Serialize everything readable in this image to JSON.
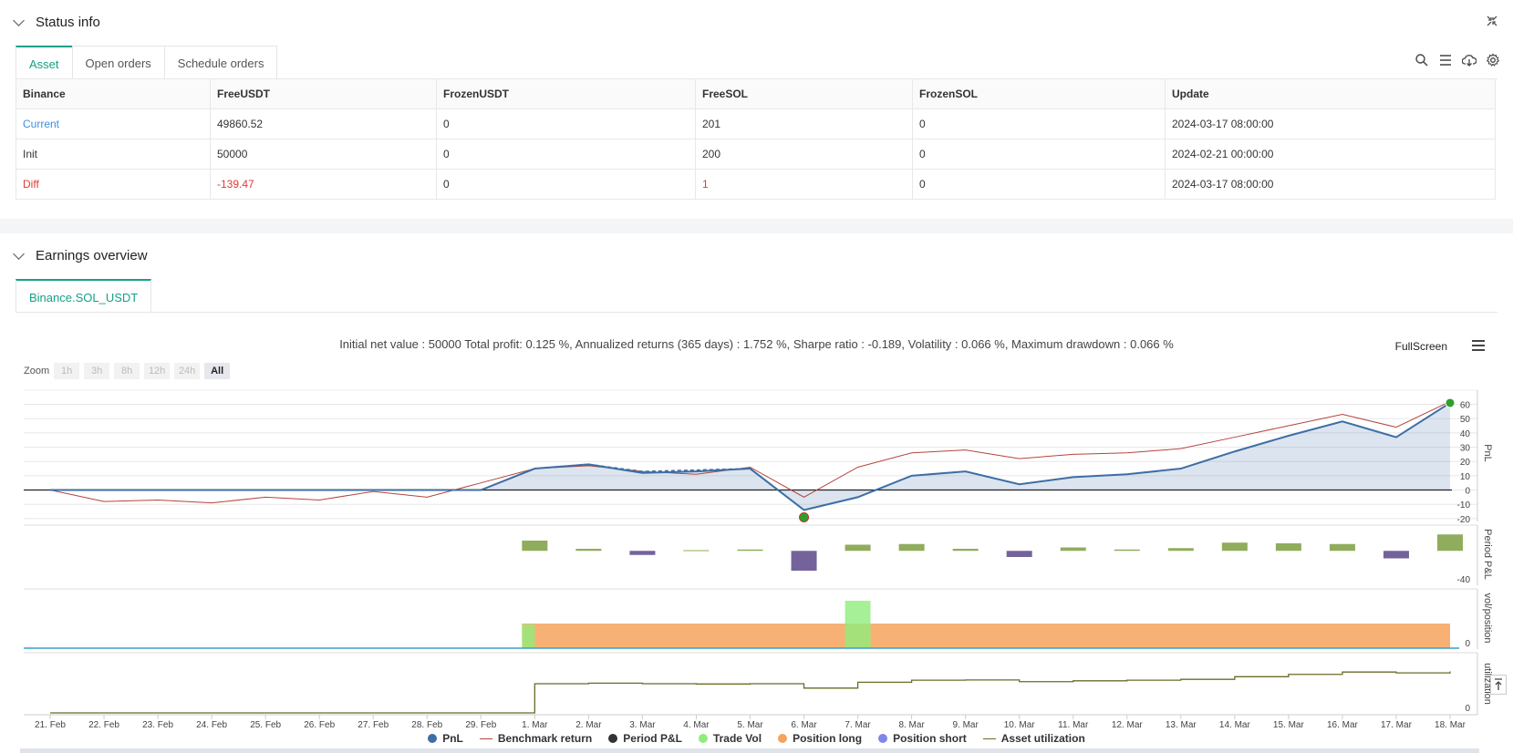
{
  "status_panel": {
    "title": "Status info",
    "tabs": [
      "Asset",
      "Open orders",
      "Schedule orders"
    ],
    "table": {
      "headers": [
        "Binance",
        "FreeUSDT",
        "FrozenUSDT",
        "FreeSOL",
        "FrozenSOL",
        "Update"
      ],
      "rows": [
        [
          "Current",
          "49860.52",
          "0",
          "201",
          "0",
          "2024-03-17 08:00:00"
        ],
        [
          "Init",
          "50000",
          "0",
          "200",
          "0",
          "2024-02-21 00:00:00"
        ],
        [
          "Diff",
          "-139.47",
          "0",
          "1",
          "0",
          "2024-03-17 08:00:00"
        ]
      ]
    },
    "icons": [
      "search-icon",
      "list-icon",
      "cloud-download-icon",
      "gear-icon",
      "collapse-icon"
    ]
  },
  "earnings_panel": {
    "title": "Earnings overview",
    "tab": "Binance.SOL_USDT",
    "summary": "Initial net value : 50000 Total profit: 0.125 %, Annualized returns (365 days) : 1.752 %, Sharpe ratio : -0.189, Volatility : 0.066 %, Maximum drawdown : 0.066 %",
    "zoom_label": "Zoom",
    "zoom_buttons": [
      "1h",
      "3h",
      "8h",
      "12h",
      "24h",
      "All"
    ],
    "zoom_selected": "All",
    "fullscreen_label": "FullScreen"
  },
  "chart_data": {
    "type": "line",
    "x": [
      "21. Feb",
      "22. Feb",
      "23. Feb",
      "24. Feb",
      "25. Feb",
      "26. Feb",
      "27. Feb",
      "28. Feb",
      "29. Feb",
      "1. Mar",
      "2. Mar",
      "3. Mar",
      "4. Mar",
      "5. Mar",
      "6. Mar",
      "7. Mar",
      "8. Mar",
      "9. Mar",
      "10. Mar",
      "11. Mar",
      "12. Mar",
      "13. Mar",
      "14. Mar",
      "15. Mar",
      "16. Mar",
      "17. Mar",
      "18. Mar"
    ],
    "panes": [
      {
        "ylabel": "PnL",
        "yticks": [
          60,
          50,
          40,
          30,
          20,
          10,
          0,
          -10,
          -20
        ],
        "ylim": [
          -22,
          68
        ],
        "series": [
          {
            "name": "PnL",
            "color": "#3d6ea5",
            "values": [
              0,
              0,
              0,
              0,
              0,
              0,
              0,
              0,
              0,
              15,
              18,
              12,
              13,
              15,
              -14,
              -5,
              10,
              13,
              4,
              9,
              11,
              15,
              27,
              38,
              48,
              37,
              61
            ]
          },
          {
            "name": "Benchmark return",
            "color": "#b5443d",
            "values": [
              0,
              -8,
              -7,
              -9,
              -5,
              -7,
              -1,
              -5,
              5,
              15,
              17,
              13,
              11,
              16,
              -5,
              16,
              26,
              28,
              22,
              25,
              26,
              29,
              37,
              45,
              53,
              44,
              62
            ]
          }
        ]
      },
      {
        "ylabel": "Period P&L",
        "yticks": [
          -40
        ],
        "ylim": [
          -45,
          35
        ],
        "series": [
          {
            "name": "Period P&L",
            "values": [
              null,
              null,
              null,
              null,
              null,
              null,
              null,
              null,
              null,
              15,
              3,
              -6,
              1,
              2,
              -29,
              9,
              10,
              3,
              -9,
              5,
              2,
              4,
              12,
              11,
              10,
              -11,
              24
            ]
          }
        ]
      },
      {
        "ylabel": "vol/position",
        "yticks": [
          0
        ],
        "series": [
          {
            "name": "Trade Vol",
            "color": "#90ed7d",
            "values": [
              0,
              0,
              0,
              0,
              0,
              0,
              0,
              0,
              0,
              1,
              0,
              0,
              0,
              0,
              0,
              2,
              0,
              0,
              0,
              0,
              0,
              0,
              0,
              0,
              0,
              0,
              0
            ]
          },
          {
            "name": "Position long",
            "color": "#f7a35c",
            "values": [
              0,
              0,
              0,
              0,
              0,
              0,
              0,
              0,
              0,
              1,
              1,
              1,
              1,
              1,
              1,
              1,
              1,
              1,
              1,
              1,
              1,
              1,
              1,
              1,
              1,
              1,
              1
            ]
          }
        ]
      },
      {
        "ylabel": "utilization",
        "yticks": [
          0
        ],
        "series": [
          {
            "name": "Asset utilization",
            "color": "#6b6b2a",
            "values": [
              0,
              0,
              0,
              0,
              0,
              0,
              0,
              0,
              0,
              1.0,
              1.02,
              1.0,
              0.99,
              1.0,
              0.85,
              1.05,
              1.12,
              1.13,
              1.07,
              1.1,
              1.12,
              1.15,
              1.24,
              1.32,
              1.4,
              1.37,
              1.42
            ]
          }
        ]
      }
    ],
    "legend": [
      "PnL",
      "Benchmark return",
      "Period P&L",
      "Trade Vol",
      "Position long",
      "Position short",
      "Asset utilization"
    ]
  }
}
